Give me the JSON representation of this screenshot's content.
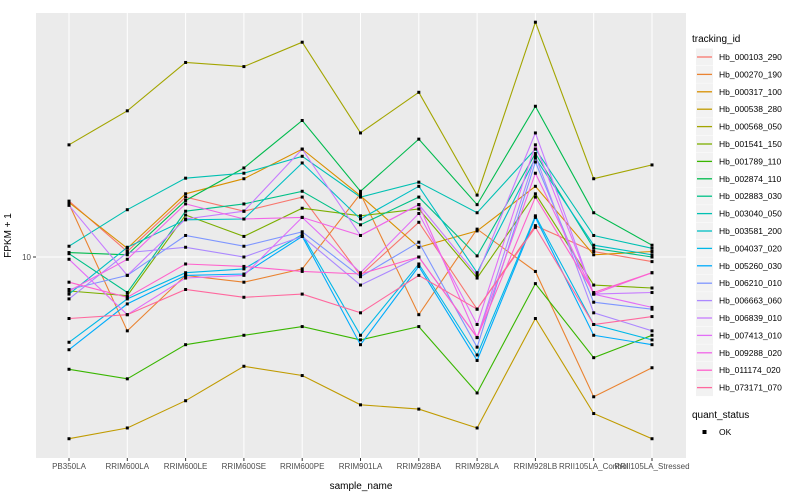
{
  "chart_data": {
    "type": "line",
    "title": "",
    "xlabel": "sample_name",
    "ylabel": "FPKM + 1",
    "y_scale": "log10",
    "y_break_value": 10,
    "y_break_label": "10",
    "ylim": [
      1.7,
      87
    ],
    "grid": "on",
    "panel_bg": "#EBEBEB",
    "grid_color": "#FFFFFF",
    "point_color": "#000000",
    "axis_text_color": "#4D4D4D",
    "legend_key_bg": "#F2F2F2",
    "legend_position": "right",
    "color_legend_title": "tracking_id",
    "shape_legend_title": "quant_status",
    "shape_legend_entries": [
      {
        "label": "OK",
        "marker": "black-square"
      }
    ],
    "categories": [
      "PB350LA",
      "RRIM600LA",
      "RRIM600LE",
      "RRIM600SE",
      "RRIM600PE",
      "RRIM901LA",
      "RRIM928BA",
      "RRIM928LA",
      "RRIM928LB",
      "RRII105LA_Control",
      "RRII105LA_Stressed"
    ],
    "series": [
      {
        "name": "Hb_000103_290",
        "color": "#F8766D",
        "values": [
          16.4,
          10.5,
          17,
          15,
          17,
          8.5,
          13.6,
          6.3,
          13.2,
          10.5,
          9.6
        ]
      },
      {
        "name": "Hb_000270_190",
        "color": "#EA8331",
        "values": [
          16,
          5.2,
          8.5,
          8,
          9,
          17.5,
          6,
          12.8,
          8.8,
          2.9,
          3.75
        ]
      },
      {
        "name": "Hb_000317_100",
        "color": "#D89000",
        "values": [
          16.2,
          10.8,
          17.5,
          20,
          26,
          17.2,
          10.9,
          12.6,
          18.7,
          10.2,
          10.5
        ]
      },
      {
        "name": "Hb_000538_280",
        "color": "#C09B00",
        "values": [
          2,
          2.2,
          2.8,
          3.8,
          3.5,
          2.7,
          2.6,
          2.2,
          5.8,
          2.5,
          2
        ]
      },
      {
        "name": "Hb_000568_050",
        "color": "#A3A500",
        "values": [
          27,
          36.5,
          56,
          54,
          67,
          30,
          43,
          17.3,
          80,
          20,
          22.6
        ]
      },
      {
        "name": "Hb_001541_150",
        "color": "#7CAE00",
        "values": [
          7.4,
          7.1,
          14.5,
          12,
          15.4,
          14.4,
          15.3,
          8.3,
          17.5,
          7.8,
          7.6
        ]
      },
      {
        "name": "Hb_001789_110",
        "color": "#39B600",
        "values": [
          3.7,
          3.4,
          4.6,
          5,
          5.4,
          4.8,
          5.4,
          3,
          7.9,
          4.1,
          5
        ]
      },
      {
        "name": "Hb_002874_110",
        "color": "#00BB4E",
        "values": [
          10.4,
          10.2,
          16.5,
          22,
          33.5,
          17.9,
          28.4,
          15.9,
          38,
          14.8,
          11.1
        ]
      },
      {
        "name": "Hb_002883_030",
        "color": "#00C087",
        "values": [
          10.3,
          7.3,
          15,
          16,
          17.9,
          13.3,
          17,
          10.1,
          25,
          10.8,
          10
        ]
      },
      {
        "name": "Hb_003040_050",
        "color": "#00C0B2",
        "values": [
          11,
          15.2,
          20.1,
          21,
          24.4,
          17,
          19.4,
          14.8,
          26,
          12.1,
          10.8
        ]
      },
      {
        "name": "Hb_003581_200",
        "color": "#00BFC4",
        "values": [
          7.2,
          10.9,
          13.9,
          14,
          23,
          14,
          18.7,
          8.7,
          24,
          11.1,
          10.2
        ]
      },
      {
        "name": "Hb_004037_020",
        "color": "#00B8E7",
        "values": [
          4.7,
          6.9,
          8.7,
          9,
          12.2,
          5,
          9.4,
          4.2,
          14.4,
          5.5,
          4.8
        ]
      },
      {
        "name": "Hb_005260_030",
        "color": "#00ACFC",
        "values": [
          4.4,
          6.6,
          8.5,
          8.6,
          12,
          4.6,
          9.2,
          4,
          14.2,
          5,
          4.6
        ]
      },
      {
        "name": "Hb_006210_010",
        "color": "#7E96FF",
        "values": [
          7.5,
          8.5,
          12.1,
          11,
          12.5,
          8.4,
          11.4,
          4.5,
          23.2,
          6.7,
          6.3
        ]
      },
      {
        "name": "Hb_006663_060",
        "color": "#AC88FF",
        "values": [
          6.9,
          10.4,
          10.9,
          10,
          12,
          7.8,
          10,
          4.9,
          24.5,
          6.1,
          5.2
        ]
      },
      {
        "name": "Hb_006839_010",
        "color": "#C77CFF",
        "values": [
          15.8,
          8.5,
          14,
          15,
          26,
          12.1,
          15.9,
          8.5,
          30,
          7.2,
          7.3
        ]
      },
      {
        "name": "Hb_007413_010",
        "color": "#E26EF7",
        "values": [
          9.8,
          6,
          8.3,
          8.5,
          14.2,
          8.7,
          14.7,
          5.5,
          27,
          7.2,
          6.4
        ]
      },
      {
        "name": "Hb_009288_020",
        "color": "#F166E8",
        "values": [
          7.4,
          9.8,
          16,
          14,
          14.2,
          12.1,
          15.9,
          4.9,
          21,
          7.2,
          8.7
        ]
      },
      {
        "name": "Hb_011174_020",
        "color": "#FF61CC",
        "values": [
          8,
          7,
          9.4,
          9.2,
          8.8,
          8.6,
          10,
          4.9,
          17,
          7.3,
          8.7
        ]
      },
      {
        "name": "Hb_073171_070",
        "color": "#FF689E",
        "values": [
          5.8,
          6,
          7.5,
          7,
          7.2,
          6.1,
          8.5,
          6.3,
          13,
          5.5,
          5.9
        ]
      }
    ]
  }
}
